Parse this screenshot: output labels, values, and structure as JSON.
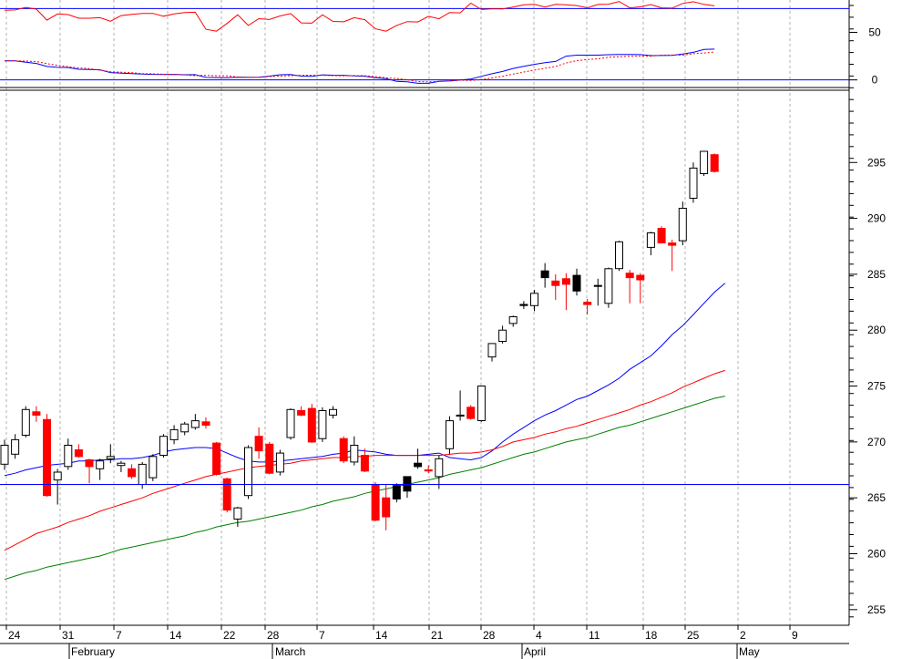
{
  "colors": {
    "background": "#ffffff",
    "up_candle_fill": "#ffffff",
    "down_candle_fill": "#000000",
    "candle_outline": "#000000",
    "red_candle": "#ff0000",
    "blue_line": "#0000ff",
    "red_line": "#ff0000",
    "green_line": "#008000",
    "grid": "#b0b0b0",
    "axis": "#000000"
  },
  "chart_data": [
    {
      "type": "line",
      "panel": "indicator",
      "y_axis_side": "right",
      "ylim": [
        -8,
        84
      ],
      "yticks": [
        "50",
        "0"
      ],
      "yticks_values": [
        50,
        0
      ],
      "reference_lines": [
        75,
        0
      ],
      "grid": true,
      "series": [
        {
          "color": "#ff0000",
          "style": "solid",
          "values": [
            73.2,
            73.6,
            76.2,
            74.4,
            62.8,
            69.3,
            68.7,
            64.8,
            64.8,
            65.4,
            61.7,
            67.6,
            68.9,
            69.9,
            69.9,
            66.9,
            69.3,
            70.9,
            71.2,
            53.2,
            51.2,
            59.4,
            68.5,
            57.3,
            64.4,
            63.5,
            67.2,
            69.7,
            59.9,
            59.7,
            68.5,
            61.5,
            61.1,
            65.4,
            63.3,
            53.7,
            51.2,
            57.3,
            61.3,
            60.9,
            66.8,
            64.3,
            70.9,
            70.5,
            80.6,
            74.0,
            74.6,
            74.7,
            76.5,
            79.0,
            79.4,
            76.6,
            79.4,
            78.9,
            78.2,
            75.8,
            79.3,
            79.6,
            82.5,
            75.8,
            76.8,
            79.2,
            75.8,
            75.5,
            80.4,
            82.2,
            79.4,
            77.9
          ]
        },
        {
          "color": "#0000ff",
          "style": "solid",
          "values": [
            20.0,
            20.0,
            18.5,
            17.3,
            14.1,
            13.2,
            13.0,
            11.2,
            11.0,
            10.6,
            7.7,
            7.1,
            6.6,
            6.2,
            5.8,
            5.7,
            5.8,
            5.4,
            5.5,
            2.6,
            2.4,
            2.3,
            2.8,
            2.6,
            2.8,
            4.0,
            5.4,
            5.6,
            4.0,
            3.8,
            5.3,
            4.9,
            4.8,
            4.2,
            3.9,
            2.3,
            1.4,
            -1.6,
            -2.1,
            -3.6,
            -3.6,
            -1.5,
            -1.0,
            -0.1,
            0.9,
            3.8,
            6.5,
            8.9,
            12.0,
            14.3,
            16.3,
            18.1,
            19.4,
            25.0,
            26.0,
            26.0,
            26.0,
            26.5,
            26.8,
            26.8,
            26.6,
            25.5,
            25.6,
            25.8,
            27.2,
            29.0,
            32.0,
            32.3
          ]
        },
        {
          "color": "#ff0000",
          "style": "dotted",
          "values": [
            20.0,
            20.0,
            19.8,
            19.2,
            17.1,
            15.3,
            13.9,
            12.5,
            11.9,
            10.2,
            8.6,
            8.1,
            7.6,
            6.6,
            6.4,
            6.0,
            5.6,
            5.2,
            4.5,
            4.8,
            4.4,
            4.3,
            3.0,
            2.6,
            2.6,
            3.5,
            4.0,
            4.5,
            4.8,
            4.9,
            4.8,
            4.5,
            4.3,
            4.6,
            4.4,
            3.4,
            2.2,
            1.5,
            0.1,
            -1.8,
            -2.1,
            -1.6,
            -1.3,
            -0.3,
            -0.6,
            0.3,
            2.1,
            3.9,
            6.1,
            8.3,
            10.3,
            12.2,
            14.1,
            17.8,
            20.3,
            21.4,
            22.1,
            23.8,
            24.3,
            25.0,
            25.0,
            25.0,
            26.0,
            26.2,
            26.0,
            27.6,
            28.2,
            29.3
          ]
        }
      ]
    },
    {
      "type": "candlestick",
      "panel": "price",
      "y_axis_side": "right",
      "ylim": [
        253.6,
        301.3
      ],
      "yticks": [
        "295",
        "290",
        "285",
        "280",
        "275",
        "270",
        "265",
        "260",
        "255"
      ],
      "yticks_values": [
        295,
        290,
        285,
        280,
        275,
        270,
        265,
        260,
        255
      ],
      "reference_lines": [
        266.2
      ],
      "grid": true,
      "x_tick_labels": [
        "24",
        "31",
        "7",
        "14",
        "22",
        "28",
        "7",
        "14",
        "21",
        "28",
        "4",
        "11",
        "18",
        "25",
        "2",
        "9"
      ],
      "month_labels": [
        "February",
        "March",
        "April",
        "May"
      ],
      "candles": [
        {
          "o": 268.0,
          "h": 270.2,
          "l": 267.5,
          "c": 269.7,
          "color": "white"
        },
        {
          "o": 268.9,
          "h": 270.7,
          "l": 268.5,
          "c": 270.2,
          "color": "white"
        },
        {
          "o": 270.6,
          "h": 273.2,
          "l": 270.4,
          "c": 272.9,
          "color": "white"
        },
        {
          "o": 272.7,
          "h": 273.2,
          "l": 271.8,
          "c": 272.4,
          "color": "red"
        },
        {
          "o": 272.0,
          "h": 272.5,
          "l": 265.1,
          "c": 265.2,
          "color": "red"
        },
        {
          "o": 266.6,
          "h": 267.6,
          "l": 264.4,
          "c": 267.3,
          "color": "white"
        },
        {
          "o": 267.8,
          "h": 270.3,
          "l": 267.5,
          "c": 269.7,
          "color": "white"
        },
        {
          "o": 269.3,
          "h": 269.8,
          "l": 268.6,
          "c": 268.7,
          "color": "red"
        },
        {
          "o": 268.4,
          "h": 268.5,
          "l": 266.3,
          "c": 267.8,
          "color": "red"
        },
        {
          "o": 267.6,
          "h": 268.5,
          "l": 266.6,
          "c": 268.3,
          "color": "white"
        },
        {
          "o": 268.5,
          "h": 269.8,
          "l": 268.1,
          "c": 268.7,
          "color": "white"
        },
        {
          "o": 268.1,
          "h": 268.3,
          "l": 267.3,
          "c": 267.9,
          "color": "white"
        },
        {
          "o": 267.6,
          "h": 268.0,
          "l": 266.7,
          "c": 266.9,
          "color": "red"
        },
        {
          "o": 266.2,
          "h": 268.2,
          "l": 265.8,
          "c": 268.0,
          "color": "white"
        },
        {
          "o": 266.8,
          "h": 268.9,
          "l": 266.5,
          "c": 268.7,
          "color": "white"
        },
        {
          "o": 268.8,
          "h": 270.7,
          "l": 268.6,
          "c": 270.5,
          "color": "white"
        },
        {
          "o": 270.2,
          "h": 271.5,
          "l": 269.8,
          "c": 271.1,
          "color": "white"
        },
        {
          "o": 270.9,
          "h": 271.8,
          "l": 270.6,
          "c": 271.6,
          "color": "white"
        },
        {
          "o": 271.3,
          "h": 272.5,
          "l": 271.1,
          "c": 271.9,
          "color": "white"
        },
        {
          "o": 271.8,
          "h": 272.2,
          "l": 271.2,
          "c": 271.5,
          "color": "red"
        },
        {
          "o": 269.9,
          "h": 270.0,
          "l": 267.0,
          "c": 267.1,
          "color": "red"
        },
        {
          "o": 266.7,
          "h": 266.8,
          "l": 263.7,
          "c": 263.9,
          "color": "red"
        },
        {
          "o": 263.1,
          "h": 264.2,
          "l": 262.4,
          "c": 264.1,
          "color": "white"
        },
        {
          "o": 265.2,
          "h": 269.7,
          "l": 264.9,
          "c": 269.5,
          "color": "white"
        },
        {
          "o": 270.5,
          "h": 271.3,
          "l": 268.5,
          "c": 269.2,
          "color": "red"
        },
        {
          "o": 269.8,
          "h": 270.0,
          "l": 267.1,
          "c": 267.2,
          "color": "red"
        },
        {
          "o": 267.3,
          "h": 269.3,
          "l": 267.0,
          "c": 269.0,
          "color": "white"
        },
        {
          "o": 270.4,
          "h": 273.0,
          "l": 270.2,
          "c": 272.9,
          "color": "white"
        },
        {
          "o": 272.8,
          "h": 273.2,
          "l": 272.3,
          "c": 272.4,
          "color": "red"
        },
        {
          "o": 273.0,
          "h": 273.4,
          "l": 269.9,
          "c": 270.0,
          "color": "red"
        },
        {
          "o": 270.3,
          "h": 273.1,
          "l": 270.0,
          "c": 272.8,
          "color": "white"
        },
        {
          "o": 272.4,
          "h": 273.2,
          "l": 272.1,
          "c": 272.9,
          "color": "white"
        },
        {
          "o": 270.3,
          "h": 270.5,
          "l": 268.1,
          "c": 268.3,
          "color": "red"
        },
        {
          "o": 268.2,
          "h": 270.5,
          "l": 267.9,
          "c": 269.7,
          "color": "white"
        },
        {
          "o": 268.8,
          "h": 269.4,
          "l": 267.3,
          "c": 267.4,
          "color": "red"
        },
        {
          "o": 266.2,
          "h": 266.4,
          "l": 262.9,
          "c": 263.0,
          "color": "red"
        },
        {
          "o": 265.0,
          "h": 266.2,
          "l": 262.1,
          "c": 263.3,
          "color": "red"
        },
        {
          "o": 264.9,
          "h": 266.3,
          "l": 264.6,
          "c": 266.1,
          "color": "black"
        },
        {
          "o": 265.6,
          "h": 266.9,
          "l": 265.0,
          "c": 266.9,
          "color": "black"
        },
        {
          "o": 267.8,
          "h": 269.4,
          "l": 267.6,
          "c": 268.1,
          "color": "black"
        },
        {
          "o": 267.5,
          "h": 267.9,
          "l": 267.2,
          "c": 267.4,
          "color": "red"
        },
        {
          "o": 266.9,
          "h": 268.8,
          "l": 265.8,
          "c": 268.5,
          "color": "white"
        },
        {
          "o": 269.4,
          "h": 272.3,
          "l": 268.9,
          "c": 271.9,
          "color": "white"
        },
        {
          "o": 272.4,
          "h": 274.6,
          "l": 271.9,
          "c": 272.3,
          "color": "white"
        },
        {
          "o": 273.1,
          "h": 273.3,
          "l": 272.0,
          "c": 272.1,
          "color": "red"
        },
        {
          "o": 271.9,
          "h": 275.0,
          "l": 271.8,
          "c": 275.0,
          "color": "white"
        },
        {
          "o": 277.6,
          "h": 278.8,
          "l": 277.2,
          "c": 278.8,
          "color": "white"
        },
        {
          "o": 279.0,
          "h": 280.4,
          "l": 278.8,
          "c": 280.0,
          "color": "white"
        },
        {
          "o": 280.6,
          "h": 281.3,
          "l": 280.3,
          "c": 281.2,
          "color": "white"
        },
        {
          "o": 282.2,
          "h": 282.6,
          "l": 281.9,
          "c": 282.3,
          "color": "black"
        },
        {
          "o": 282.2,
          "h": 283.6,
          "l": 281.7,
          "c": 283.3,
          "color": "white"
        },
        {
          "o": 285.3,
          "h": 286.0,
          "l": 283.8,
          "c": 284.7,
          "color": "black"
        },
        {
          "o": 284.4,
          "h": 285.0,
          "l": 282.7,
          "c": 284.0,
          "color": "red"
        },
        {
          "o": 284.6,
          "h": 285.1,
          "l": 281.8,
          "c": 284.1,
          "color": "red"
        },
        {
          "o": 283.5,
          "h": 285.5,
          "l": 283.1,
          "c": 284.9,
          "color": "black"
        },
        {
          "o": 282.5,
          "h": 282.8,
          "l": 281.4,
          "c": 282.3,
          "color": "red"
        },
        {
          "o": 284.0,
          "h": 284.6,
          "l": 282.2,
          "c": 284.0,
          "color": "white"
        },
        {
          "o": 282.4,
          "h": 285.6,
          "l": 282.0,
          "c": 285.5,
          "color": "white"
        },
        {
          "o": 285.5,
          "h": 288.0,
          "l": 285.3,
          "c": 287.9,
          "color": "white"
        },
        {
          "o": 285.1,
          "h": 285.4,
          "l": 282.4,
          "c": 284.7,
          "color": "red"
        },
        {
          "o": 284.9,
          "h": 285.1,
          "l": 282.4,
          "c": 284.5,
          "color": "red"
        },
        {
          "o": 287.4,
          "h": 288.8,
          "l": 286.7,
          "c": 288.7,
          "color": "white"
        },
        {
          "o": 289.1,
          "h": 289.3,
          "l": 287.8,
          "c": 287.8,
          "color": "red"
        },
        {
          "o": 287.8,
          "h": 288.1,
          "l": 285.3,
          "c": 287.6,
          "color": "red"
        },
        {
          "o": 288.0,
          "h": 291.5,
          "l": 287.6,
          "c": 290.9,
          "color": "white"
        },
        {
          "o": 291.8,
          "h": 295.0,
          "l": 291.4,
          "c": 294.5,
          "color": "white"
        },
        {
          "o": 294.0,
          "h": 296.0,
          "l": 293.8,
          "c": 296.0,
          "color": "white"
        },
        {
          "o": 295.7,
          "h": 295.8,
          "l": 294.1,
          "c": 294.2,
          "color": "red"
        }
      ],
      "series": [
        {
          "color": "#0000ff",
          "values": [
            267.0,
            267.2,
            267.5,
            267.7,
            267.9,
            268.0,
            268.1,
            268.3,
            268.3,
            268.4,
            268.4,
            268.5,
            268.5,
            268.6,
            268.8,
            269.1,
            269.3,
            269.4,
            269.5,
            269.5,
            269.4,
            269.0,
            268.6,
            268.3,
            268.2,
            268.2,
            268.3,
            268.4,
            268.5,
            268.6,
            268.7,
            268.9,
            269.0,
            269.3,
            269.2,
            269.1,
            268.9,
            268.8,
            268.8,
            268.8,
            268.9,
            269.0,
            268.6,
            268.5,
            268.4,
            268.6,
            269.2,
            270.0,
            270.7,
            271.3,
            271.9,
            272.4,
            272.8,
            273.3,
            273.8,
            274.1,
            274.6,
            275.1,
            275.7,
            276.5,
            277.1,
            277.7,
            278.6,
            279.6,
            280.4,
            281.4,
            282.4,
            283.4,
            284.2
          ]
        },
        {
          "color": "#ff0000",
          "values": [
            260.3,
            260.8,
            261.3,
            261.8,
            262.1,
            262.4,
            262.8,
            263.1,
            263.4,
            263.8,
            264.1,
            264.4,
            264.7,
            265.0,
            265.4,
            265.7,
            266.0,
            266.3,
            266.6,
            266.9,
            267.1,
            267.3,
            267.5,
            267.7,
            267.8,
            267.9,
            268.0,
            268.1,
            268.3,
            268.4,
            268.5,
            268.6,
            268.6,
            268.7,
            268.7,
            268.8,
            268.8,
            268.8,
            268.8,
            268.8,
            268.8,
            268.8,
            268.9,
            269.0,
            269.0,
            269.1,
            269.3,
            269.6,
            270.0,
            270.2,
            270.4,
            270.7,
            270.9,
            271.2,
            271.4,
            271.7,
            272.0,
            272.3,
            272.6,
            272.9,
            273.3,
            273.6,
            274.0,
            274.4,
            274.9,
            275.3,
            275.7,
            276.1,
            276.4
          ]
        },
        {
          "color": "#008000",
          "values": [
            257.7,
            258.0,
            258.3,
            258.5,
            258.8,
            259.0,
            259.2,
            259.4,
            259.6,
            259.8,
            260.1,
            260.4,
            260.6,
            260.8,
            261.0,
            261.2,
            261.4,
            261.6,
            261.9,
            262.1,
            262.4,
            262.6,
            262.8,
            262.9,
            263.1,
            263.3,
            263.5,
            263.7,
            263.9,
            264.2,
            264.4,
            264.7,
            264.9,
            265.1,
            265.4,
            265.6,
            265.8,
            266.0,
            266.2,
            266.4,
            266.6,
            266.8,
            267.1,
            267.3,
            267.5,
            267.7,
            268.0,
            268.3,
            268.6,
            268.9,
            269.1,
            269.4,
            269.7,
            270.0,
            270.2,
            270.4,
            270.7,
            271.0,
            271.3,
            271.5,
            271.8,
            272.1,
            272.4,
            272.7,
            273.0,
            273.3,
            273.6,
            273.9,
            274.1
          ]
        }
      ]
    }
  ]
}
